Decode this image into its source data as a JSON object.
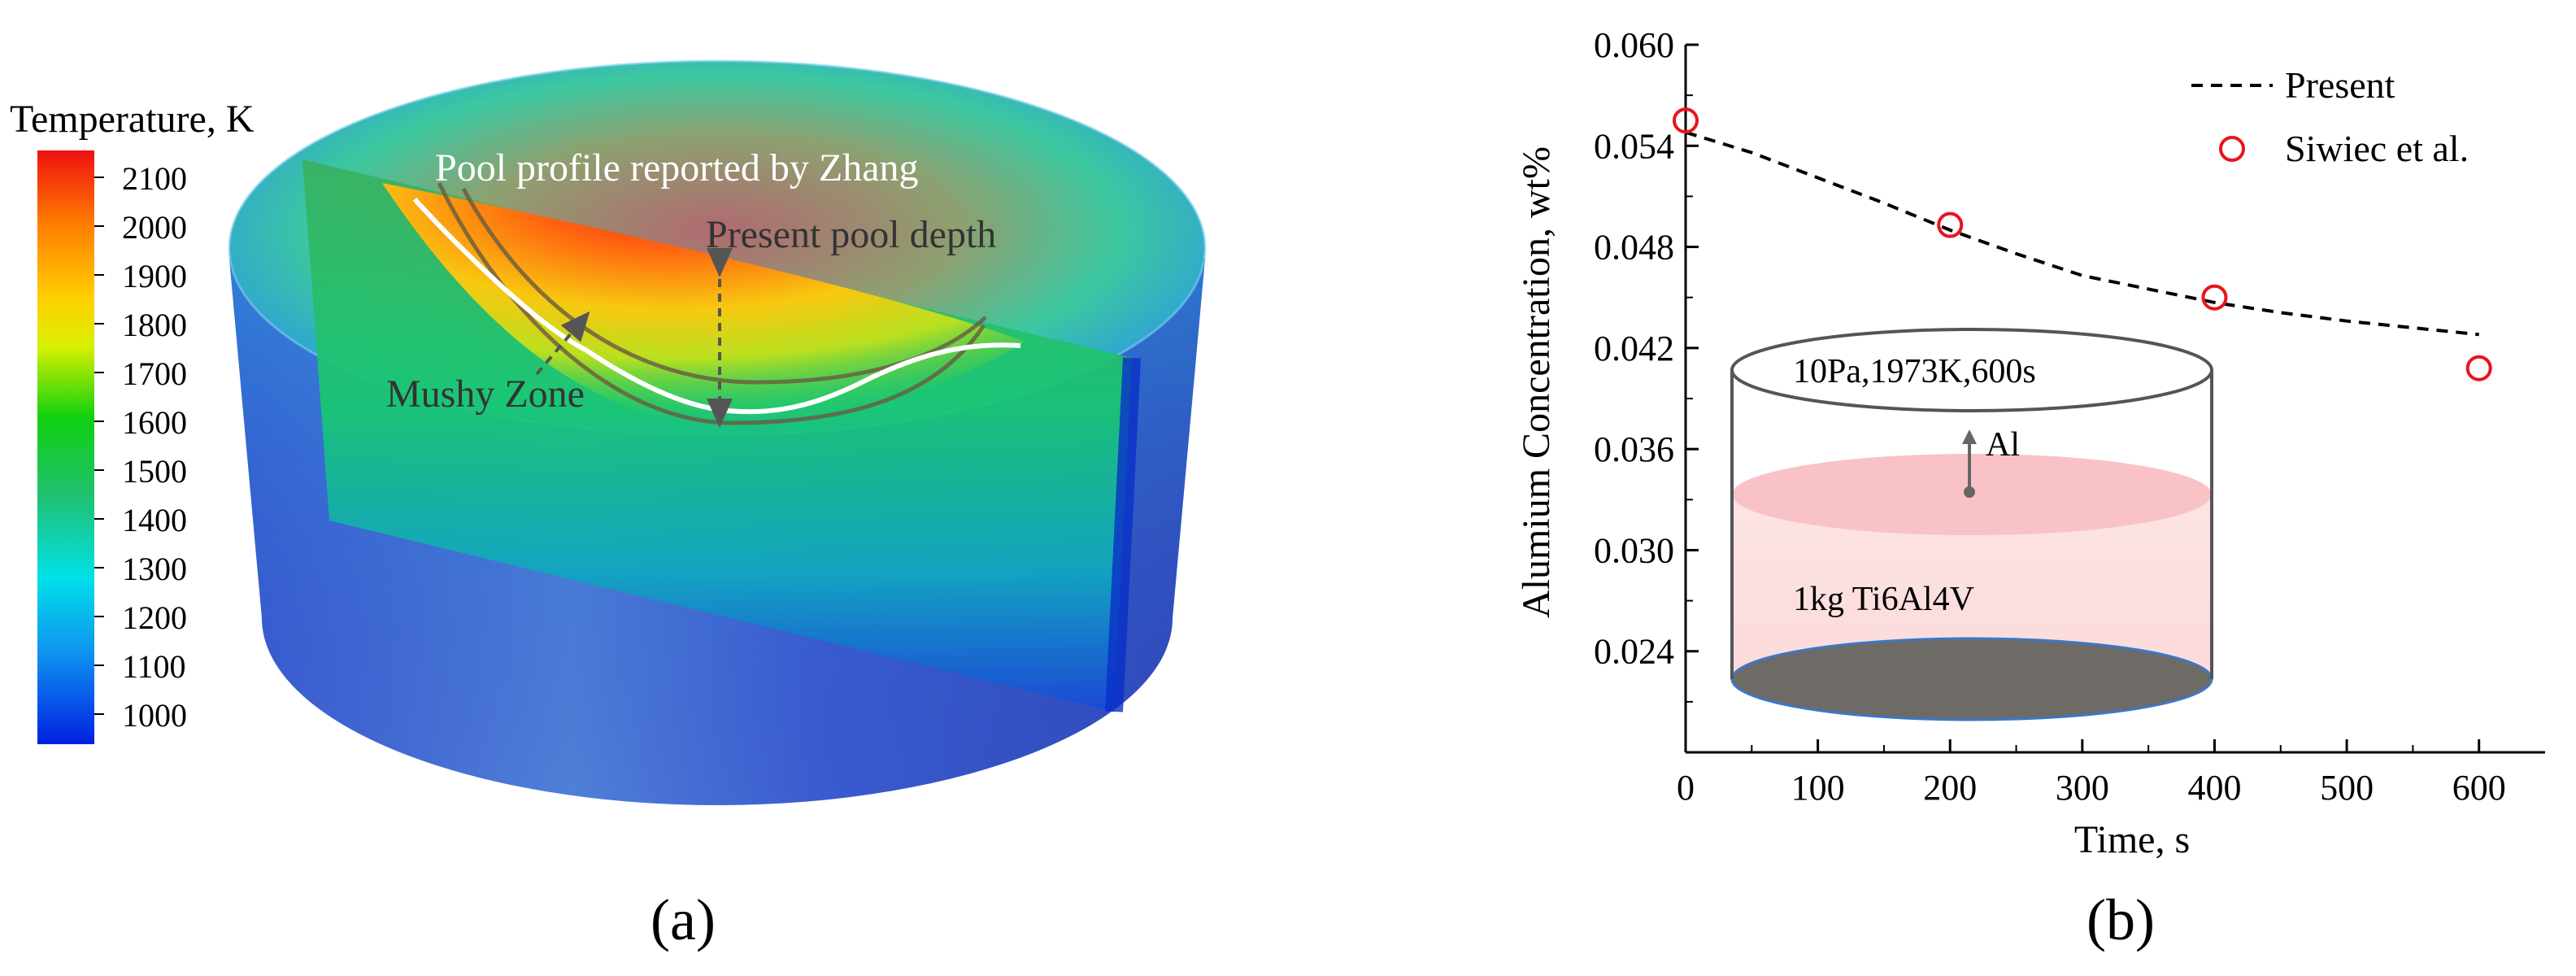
{
  "panel_a": {
    "colorbar_title": "Temperature, K",
    "colorbar_ticks": [
      "2100",
      "2000",
      "1900",
      "1800",
      "1700",
      "1600",
      "1500",
      "1400",
      "1300",
      "1200",
      "1100",
      "1000"
    ],
    "annotations": {
      "pool_profile": "Pool profile reported by Zhang",
      "pool_depth": "Present pool depth",
      "mushy": "Mushy Zone"
    },
    "label": "(a)"
  },
  "panel_b": {
    "label": "(b)",
    "inset": {
      "conditions": "10Pa,1973K,600s",
      "element": "Al",
      "material": "1kg Ti6Al4V"
    }
  },
  "chart_data": {
    "type": "line",
    "xlabel": "Time, s",
    "ylabel": "Alumium Concentration, wt%",
    "xlim": [
      0,
      650
    ],
    "ylim": [
      0.018,
      0.06
    ],
    "xticks": [
      0,
      100,
      200,
      300,
      400,
      500,
      600
    ],
    "xtick_labels": [
      "0",
      "100",
      "200",
      "300",
      "400",
      "500",
      "600"
    ],
    "yticks": [
      0.024,
      0.03,
      0.036,
      0.042,
      0.048,
      0.054,
      0.06
    ],
    "ytick_labels": [
      "0.024",
      "0.030",
      "0.036",
      "0.042",
      "0.048",
      "0.054",
      "0.060"
    ],
    "legend_position": "top-right",
    "series": [
      {
        "name": "Present",
        "style": "dashed",
        "color": "#000000",
        "x": [
          0,
          50,
          100,
          150,
          200,
          250,
          300,
          350,
          400,
          450,
          500,
          550,
          600
        ],
        "y": [
          0.0548,
          0.0536,
          0.0521,
          0.0506,
          0.049,
          0.0476,
          0.0463,
          0.0455,
          0.0447,
          0.0441,
          0.0436,
          0.0432,
          0.0428
        ]
      },
      {
        "name": "Siwiec et al.",
        "style": "markers",
        "color": "#e8141e",
        "x": [
          0,
          200,
          400,
          600
        ],
        "y": [
          0.0555,
          0.0493,
          0.045,
          0.0408
        ]
      }
    ]
  }
}
